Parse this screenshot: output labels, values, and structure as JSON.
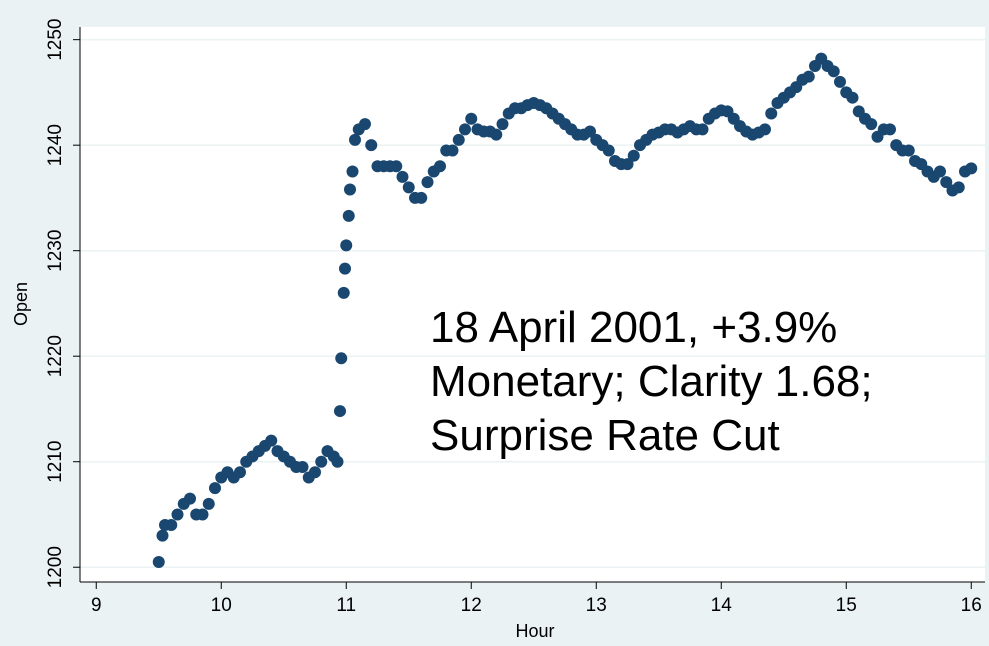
{
  "chart_data": {
    "type": "scatter",
    "x_label": "Hour",
    "y_label": "Open",
    "annotation": [
      "18 April 2001, +3.9%",
      "Monetary; Clarity 1.68;",
      "Surprise Rate Cut"
    ],
    "color": "#1a476f",
    "grid": true,
    "xlim": [
      8.87,
      16.11
    ],
    "ylim": [
      1198.6,
      1251.2
    ],
    "xticks": [
      9,
      10,
      11,
      12,
      13,
      14,
      15,
      16
    ],
    "yticks": [
      1200,
      1210,
      1220,
      1230,
      1240,
      1250
    ],
    "x": [
      9.5,
      9.53,
      9.55,
      9.6,
      9.65,
      9.7,
      9.75,
      9.8,
      9.85,
      9.9,
      9.95,
      10.0,
      10.05,
      10.1,
      10.15,
      10.2,
      10.25,
      10.3,
      10.35,
      10.4,
      10.45,
      10.5,
      10.55,
      10.6,
      10.65,
      10.7,
      10.75,
      10.8,
      10.85,
      10.9,
      10.93,
      10.95,
      10.96,
      10.98,
      10.99,
      11.0,
      11.02,
      11.03,
      11.05,
      11.07,
      11.1,
      11.15,
      11.2,
      11.25,
      11.3,
      11.35,
      11.4,
      11.45,
      11.5,
      11.55,
      11.6,
      11.65,
      11.7,
      11.75,
      11.8,
      11.85,
      11.9,
      11.95,
      12.0,
      12.05,
      12.1,
      12.15,
      12.2,
      12.25,
      12.3,
      12.35,
      12.4,
      12.45,
      12.5,
      12.55,
      12.6,
      12.65,
      12.7,
      12.75,
      12.8,
      12.85,
      12.9,
      12.95,
      13.0,
      13.05,
      13.1,
      13.15,
      13.2,
      13.25,
      13.3,
      13.35,
      13.4,
      13.45,
      13.5,
      13.55,
      13.6,
      13.65,
      13.7,
      13.75,
      13.8,
      13.85,
      13.9,
      13.95,
      14.0,
      14.05,
      14.1,
      14.15,
      14.2,
      14.25,
      14.3,
      14.35,
      14.4,
      14.45,
      14.5,
      14.55,
      14.6,
      14.65,
      14.7,
      14.75,
      14.8,
      14.85,
      14.9,
      14.95,
      15.0,
      15.05,
      15.1,
      15.15,
      15.2,
      15.25,
      15.3,
      15.35,
      15.4,
      15.45,
      15.5,
      15.55,
      15.6,
      15.65,
      15.7,
      15.75,
      15.8,
      15.85,
      15.9,
      15.95,
      16.0
    ],
    "values": [
      1200.5,
      1203,
      1204,
      1204,
      1205,
      1206,
      1206.5,
      1205,
      1205,
      1206,
      1207.5,
      1208.5,
      1209,
      1208.5,
      1209,
      1210,
      1210.5,
      1211,
      1211.5,
      1212,
      1211,
      1210.5,
      1210,
      1209.5,
      1209.5,
      1208.5,
      1209,
      1210,
      1211,
      1210.5,
      1210,
      1214.8,
      1219.8,
      1226,
      1228.3,
      1230.5,
      1233.3,
      1235.8,
      1237.5,
      1240.5,
      1241.5,
      1242,
      1240,
      1238,
      1238,
      1238,
      1238,
      1237,
      1236,
      1235,
      1235,
      1236.5,
      1237.5,
      1238,
      1239.5,
      1239.5,
      1240.5,
      1241.5,
      1242.5,
      1241.5,
      1241.3,
      1241.3,
      1241,
      1242,
      1243,
      1243.5,
      1243.5,
      1243.8,
      1244,
      1243.8,
      1243.5,
      1243,
      1242.5,
      1242,
      1241.5,
      1241,
      1241,
      1241.3,
      1240.5,
      1240,
      1239.5,
      1238.5,
      1238.2,
      1238.2,
      1239,
      1240,
      1240.5,
      1241,
      1241.2,
      1241.5,
      1241.5,
      1241.2,
      1241.5,
      1241.8,
      1241.5,
      1241.5,
      1242.5,
      1243,
      1243.3,
      1243.2,
      1242.5,
      1241.8,
      1241.3,
      1241,
      1241.2,
      1241.5,
      1243,
      1244,
      1244.5,
      1245,
      1245.5,
      1246.2,
      1246.5,
      1247.5,
      1248.2,
      1247.5,
      1247,
      1246,
      1245,
      1244.5,
      1243.2,
      1242.5,
      1242,
      1240.8,
      1241.5,
      1241.5,
      1240,
      1239.5,
      1239.5,
      1238.5,
      1238.2,
      1237.5,
      1237,
      1237.5,
      1236.5,
      1235.7,
      1236,
      1237.5,
      1237.8
    ]
  }
}
